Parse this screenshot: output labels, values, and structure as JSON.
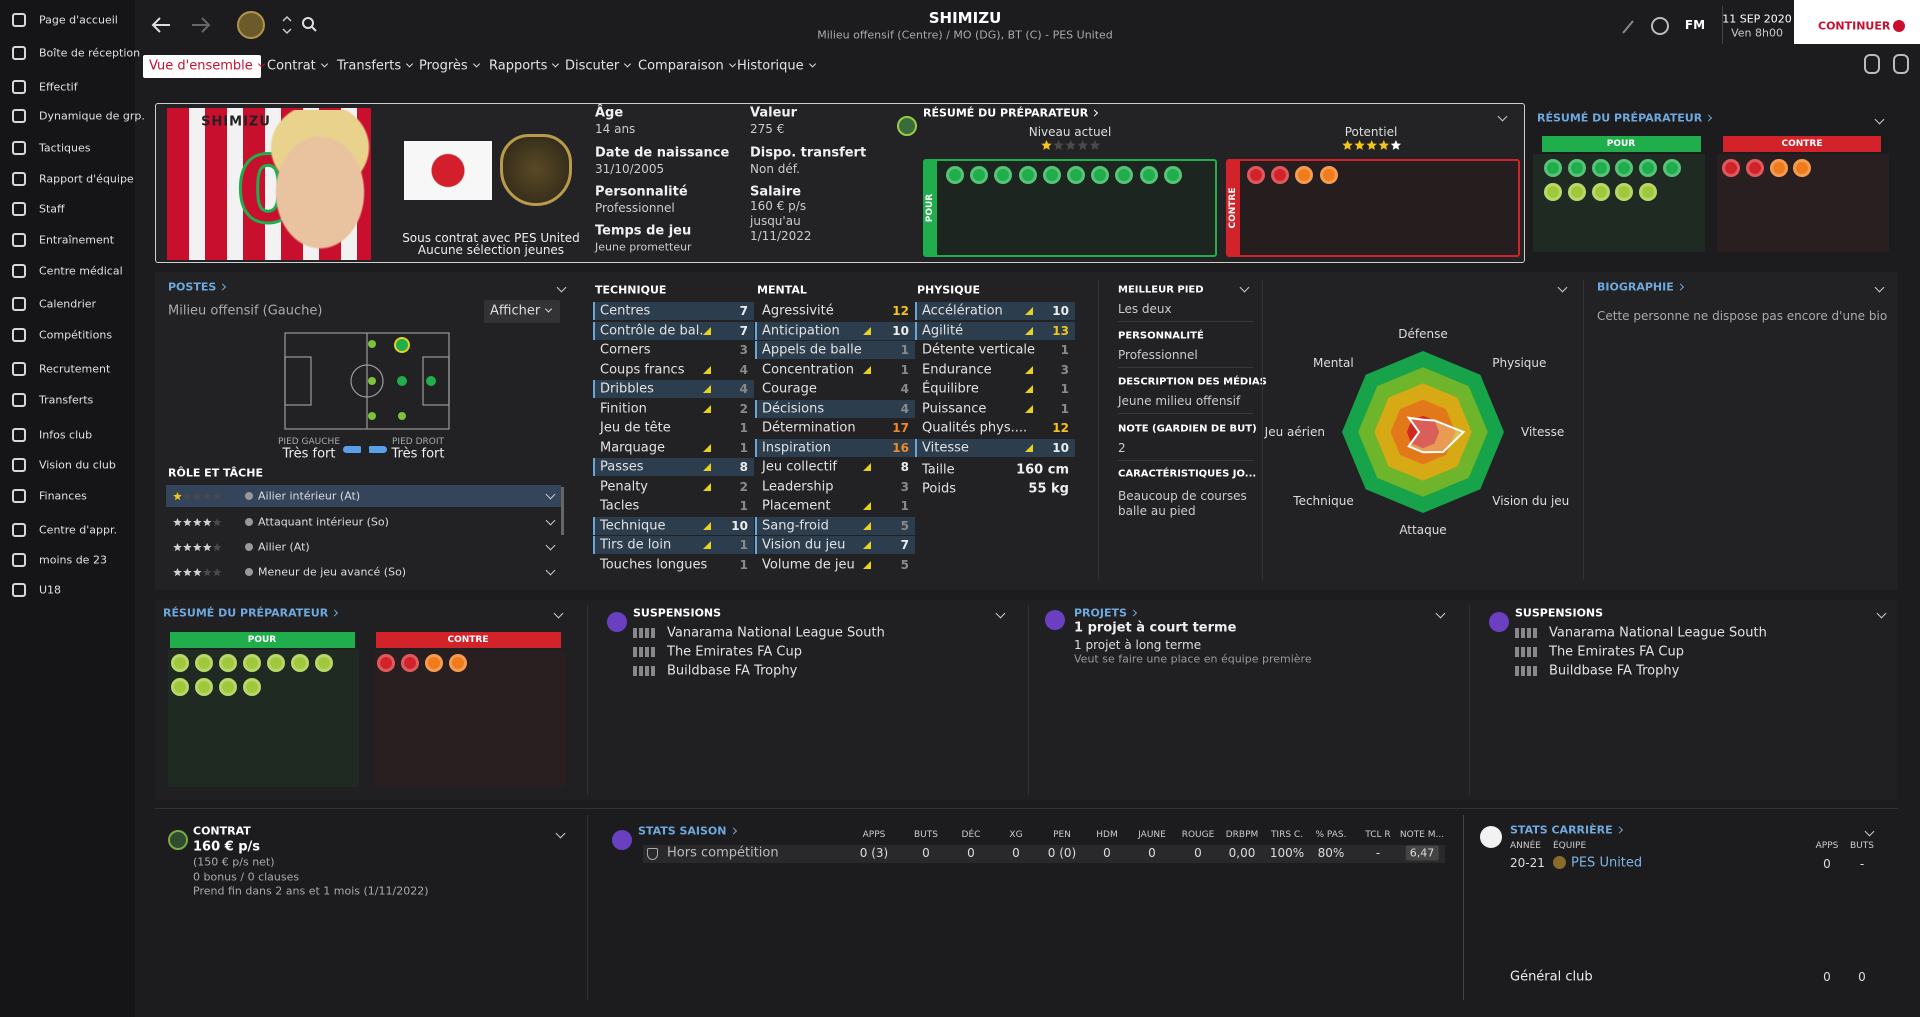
{
  "sidebar": {
    "items": [
      "Page d'accueil",
      "Boîte de réception",
      "Effectif",
      "Dynamique de grp.",
      "Tactiques",
      "Rapport d'équipe",
      "Staff",
      "Entraînement",
      "Centre médical",
      "Calendrier",
      "Compétitions",
      "Recrutement",
      "Transferts",
      "Infos club",
      "Vision du club",
      "Finances",
      "Centre d'appr.",
      "moins de 23",
      "U18"
    ]
  },
  "header": {
    "player_name": "SHIMIZU",
    "subtitle": "Milieu offensif (Centre) / MO (DG), BT (C) - PES United",
    "logo": "FM",
    "date": "11 SEP 2020",
    "time": "Ven 8h00",
    "continue": "CONTINUER"
  },
  "tabs": [
    "Vue d'ensemble",
    "Contrat",
    "Transferts",
    "Progrès",
    "Rapports",
    "Discuter",
    "Comparaison",
    "Historique"
  ],
  "profile": {
    "shirt_name": "SHIMIZU",
    "shirt_number": "0",
    "contract_line": "Sous contrat avec PES United",
    "youth_caps": "Aucune sélection jeunes",
    "left": [
      {
        "label": "Âge",
        "value": "14 ans"
      },
      {
        "label": "Date de naissance",
        "value": "31/10/2005"
      },
      {
        "label": "Personnalité",
        "value": "Professionnel"
      },
      {
        "label": "Temps de jeu",
        "value": "Jeune prometteur"
      }
    ],
    "right": [
      {
        "label": "Valeur",
        "value": "275 €"
      },
      {
        "label": "Dispo. transfert",
        "value": "Non déf."
      },
      {
        "label": "Salaire",
        "value": "160 € p/s jusqu'au 1/11/2022"
      }
    ]
  },
  "coach_report": {
    "title": "RÉSUMÉ DU PRÉPARATEUR",
    "current_label": "Niveau actuel",
    "current_stars": 1,
    "potential_label": "Potentiel",
    "potential_stars": 4.5,
    "pros": "POUR",
    "cons": "CONTRE"
  },
  "side_report": {
    "title": "RÉSUMÉ DU PRÉPARATEUR",
    "pros": "POUR",
    "cons": "CONTRE"
  },
  "positions": {
    "title": "POSTES",
    "selected": "Milieu offensif (Gauche)",
    "button": "Afficher",
    "left_foot_label": "PIED GAUCHE",
    "left_foot": "Très fort",
    "right_foot_label": "PIED DROIT",
    "right_foot": "Très fort",
    "roles_title": "RÔLE ET TÂCHE",
    "roles": [
      {
        "name": "Ailier intérieur (At)",
        "stars": 1
      },
      {
        "name": "Attaquant intérieur (So)",
        "stars": 3.5
      },
      {
        "name": "Ailier (At)",
        "stars": 3.5
      },
      {
        "name": "Meneur de jeu avancé (So)",
        "stars": 3
      }
    ]
  },
  "attributes": {
    "groups": [
      {
        "title": "TECHNIQUE",
        "rows": [
          {
            "name": "Centres",
            "value": 7,
            "key": true,
            "up": false
          },
          {
            "name": "Contrôle de bal...",
            "value": 7,
            "key": true,
            "up": true
          },
          {
            "name": "Corners",
            "value": 3,
            "key": false,
            "up": false
          },
          {
            "name": "Coups francs",
            "value": 4,
            "key": false,
            "up": true
          },
          {
            "name": "Dribbles",
            "value": 4,
            "key": true,
            "up": true
          },
          {
            "name": "Finition",
            "value": 2,
            "key": false,
            "up": true
          },
          {
            "name": "Jeu de tête",
            "value": 1,
            "key": false,
            "up": false
          },
          {
            "name": "Marquage",
            "value": 1,
            "key": false,
            "up": true
          },
          {
            "name": "Passes",
            "value": 8,
            "key": true,
            "up": true
          },
          {
            "name": "Penalty",
            "value": 2,
            "key": false,
            "up": true
          },
          {
            "name": "Tacles",
            "value": 1,
            "key": false,
            "up": false
          },
          {
            "name": "Technique",
            "value": 10,
            "key": true,
            "up": true
          },
          {
            "name": "Tirs de loin",
            "value": 1,
            "key": true,
            "up": true
          },
          {
            "name": "Touches longues",
            "value": 1,
            "key": false,
            "up": false
          }
        ]
      },
      {
        "title": "MENTAL",
        "rows": [
          {
            "name": "Agressivité",
            "value": 12,
            "key": false,
            "up": false
          },
          {
            "name": "Anticipation",
            "value": 10,
            "key": true,
            "up": true
          },
          {
            "name": "Appels de balle",
            "value": 1,
            "key": true,
            "up": false
          },
          {
            "name": "Concentration",
            "value": 1,
            "key": false,
            "up": true
          },
          {
            "name": "Courage",
            "value": 4,
            "key": false,
            "up": false
          },
          {
            "name": "Décisions",
            "value": 4,
            "key": true,
            "up": false
          },
          {
            "name": "Détermination",
            "value": 17,
            "key": false,
            "up": false
          },
          {
            "name": "Inspiration",
            "value": 16,
            "key": true,
            "up": false
          },
          {
            "name": "Jeu collectif",
            "value": 8,
            "key": false,
            "up": true
          },
          {
            "name": "Leadership",
            "value": 3,
            "key": false,
            "up": false
          },
          {
            "name": "Placement",
            "value": 1,
            "key": false,
            "up": true
          },
          {
            "name": "Sang-froid",
            "value": 5,
            "key": true,
            "up": true
          },
          {
            "name": "Vision du jeu",
            "value": 7,
            "key": true,
            "up": true
          },
          {
            "name": "Volume de jeu",
            "value": 5,
            "key": false,
            "up": true
          }
        ]
      },
      {
        "title": "PHYSIQUE",
        "rows": [
          {
            "name": "Accélération",
            "value": 10,
            "key": true,
            "up": true
          },
          {
            "name": "Agilité",
            "value": 13,
            "key": true,
            "up": true
          },
          {
            "name": "Détente verticale",
            "value": 1,
            "key": false,
            "up": false
          },
          {
            "name": "Endurance",
            "value": 3,
            "key": false,
            "up": true
          },
          {
            "name": "Équilibre",
            "value": 1,
            "key": false,
            "up": true
          },
          {
            "name": "Puissance",
            "value": 1,
            "key": false,
            "up": true
          },
          {
            "name": "Qualités phys....",
            "value": 12,
            "key": false,
            "up": false
          },
          {
            "name": "Vitesse",
            "value": 10,
            "key": true,
            "up": true
          }
        ]
      }
    ],
    "height_label": "Taille",
    "height": "160 cm",
    "weight_label": "Poids",
    "weight": "55 kg"
  },
  "player_info": [
    {
      "label": "MEILLEUR PIED",
      "value": "Les deux"
    },
    {
      "label": "PERSONNALITÉ",
      "value": "Professionnel"
    },
    {
      "label": "DESCRIPTION DES MÉDIAS",
      "value": "Jeune milieu offensif"
    },
    {
      "label": "NOTE (GARDIEN DE BUT)",
      "value": "2"
    },
    {
      "label": "CARACTÉRISTIQUES JO...",
      "value": "Beaucoup de courses balle au pied"
    }
  ],
  "radar": {
    "axes": [
      "Défense",
      "Physique",
      "Vitesse",
      "Vision du jeu",
      "Attaque",
      "Technique",
      "Jeu aérien",
      "Mental"
    ],
    "values": [
      3,
      4,
      10,
      7,
      5,
      5,
      1,
      5
    ],
    "max": 20
  },
  "biography": {
    "title": "BIOGRAPHIE",
    "text": "Cette personne ne dispose pas encore d'une biograp"
  },
  "bottom": {
    "report": {
      "title": "RÉSUMÉ DU PRÉPARATEUR",
      "pros": "POUR",
      "cons": "CONTRE"
    },
    "suspensions_a": {
      "title": "SUSPENSIONS",
      "items": [
        "Vanarama National League South",
        "The Emirates FA Cup",
        "Buildbase FA Trophy"
      ]
    },
    "projects": {
      "title": "PROJETS",
      "short": "1 projet à court terme",
      "long": "1 projet à long terme",
      "note": "Veut se faire une place en équipe première"
    },
    "suspensions_b": {
      "title": "SUSPENSIONS",
      "items": [
        "Vanarama National League South",
        "The Emirates FA Cup",
        "Buildbase FA Trophy"
      ]
    }
  },
  "contract": {
    "title": "CONTRAT",
    "wage": "160 € p/s",
    "lines": [
      "(150 € p/s net)",
      "0 bonus / 0 clauses",
      "Prend fin dans 2 ans et 1 mois  (1/11/2022)"
    ]
  },
  "season_stats": {
    "title": "STATS SAISON",
    "headers": [
      "APPS",
      "BUTS",
      "DÉC",
      "XG",
      "PEN",
      "HDM",
      "JAUNE",
      "ROUGE",
      "DRBPM",
      "TIRS C.",
      "% PAS.",
      "TCL R",
      "NOTE M..."
    ],
    "row": {
      "label": "Hors compétition",
      "values": [
        "0 (3)",
        0,
        0,
        0,
        "0 (0)",
        0,
        0,
        0,
        "0,00",
        "100%",
        "80%",
        "-",
        "6,47"
      ]
    }
  },
  "career_stats": {
    "title": "STATS CARRIÈRE",
    "headers": [
      "ANNÉE",
      "ÉQUIPE",
      "APPS",
      "BUTS"
    ],
    "row": {
      "season": "20-21",
      "team": "PES United",
      "apps": 0,
      "goals": "-"
    },
    "total": {
      "label": "Général club",
      "apps": 0,
      "goals": 0
    }
  }
}
